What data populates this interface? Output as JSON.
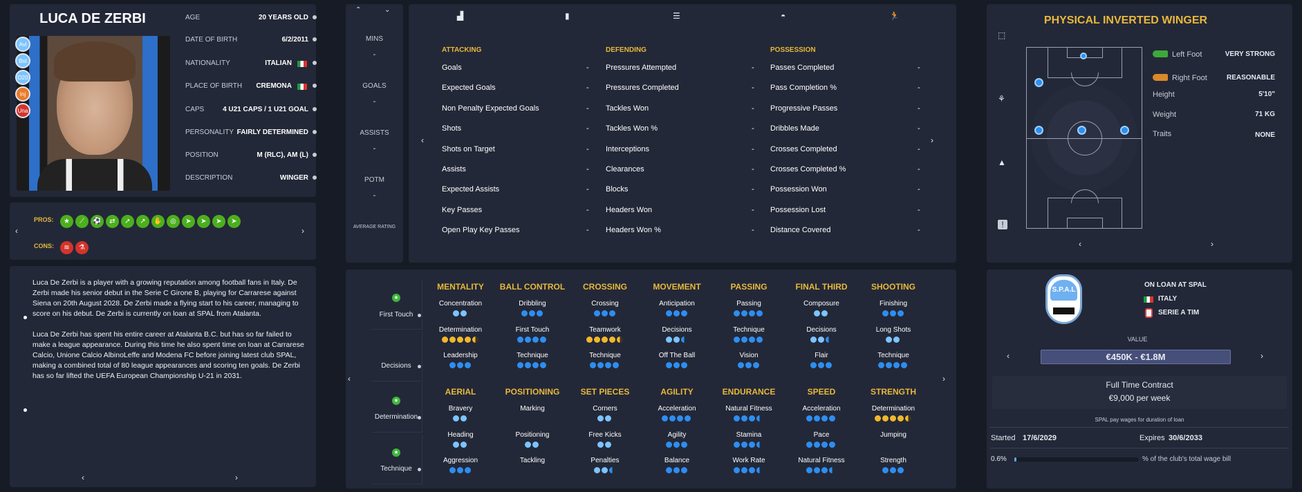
{
  "player": {
    "name": "LUCA DE ZERBI",
    "info": [
      {
        "key": "AGE",
        "value": "20 YEARS OLD"
      },
      {
        "key": "DATE OF BIRTH",
        "value": "6/2/2011"
      },
      {
        "key": "NATIONALITY",
        "value": "ITALIAN"
      },
      {
        "key": "PLACE OF BIRTH",
        "value": "CREMONA"
      },
      {
        "key": "CAPS",
        "value": "4 U21 CAPS / 1 U21 GOAL"
      },
      {
        "key": "PERSONALITY",
        "value": "FAIRLY DETERMINED"
      },
      {
        "key": "POSITION",
        "value": "M (RLC), AM (L)"
      },
      {
        "key": "DESCRIPTION",
        "value": "WINGER"
      }
    ],
    "tags": [
      {
        "label": "Avl",
        "color": "#7cc4ff"
      },
      {
        "label": "Bst",
        "color": "#7cc4ff"
      },
      {
        "label": "O20",
        "color": "#7cc4ff"
      },
      {
        "label": "Inj",
        "color": "#e97b2a"
      },
      {
        "label": "Una",
        "color": "#d3342b"
      }
    ]
  },
  "pros_label": "PROS:",
  "cons_label": "CONS:",
  "bio": {
    "p1": "Luca De Zerbi is a player with a growing reputation among football fans in Italy. De Zerbi made his senior debut in the Serie C Girone B, playing for Carrarese against Siena on 20th August 2028. De Zerbi made a flying start to his career, managing to score on his debut. De Zerbi is currently on loan at SPAL from Atalanta.",
    "p2": "Luca De Zerbi has spent his entire career at Atalanta B.C. but has so far failed to make a league appearance. During this time he also spent time on loan at Carrarese Calcio, Unione Calcio AlbinoLeffe and Modena FC before joining latest club SPAL, making a combined total of 80 league appearances and scoring ten goals. De Zerbi has so far lifted the UEFA European Championship U-21 in 2031."
  },
  "summary": [
    {
      "label": "MINS",
      "value": "-"
    },
    {
      "label": "GOALS",
      "value": "-"
    },
    {
      "label": "ASSISTS",
      "value": "-"
    },
    {
      "label": "POTM",
      "value": "-"
    },
    {
      "label": "AVERAGE RATING",
      "value": ""
    }
  ],
  "stats": {
    "attacking": {
      "title": "ATTACKING",
      "rows": [
        "Goals",
        "Expected Goals",
        "Non Penalty Expected Goals",
        "Shots",
        "Shots on Target",
        "Assists",
        "Expected Assists",
        "Key Passes",
        "Open Play Key Passes"
      ]
    },
    "defending": {
      "title": "DEFENDING",
      "rows": [
        "Pressures Attempted",
        "Pressures Completed",
        "Tackles Won",
        "Tackles Won %",
        "Interceptions",
        "Clearances",
        "Blocks",
        "Headers Won",
        "Headers Won %"
      ]
    },
    "possession": {
      "title": "POSSESSION",
      "rows": [
        "Passes Completed",
        "Pass Completion %",
        "Progressive Passes",
        "Dribbles Made",
        "Crosses Completed",
        "Crosses Completed %",
        "Possession Won",
        "Possession Lost",
        "Distance Covered"
      ]
    },
    "value": "-"
  },
  "traits_side": [
    {
      "label": "First Touch",
      "star": true
    },
    {
      "label": "Decisions",
      "star": false
    },
    {
      "label": "Determination",
      "star": true
    },
    {
      "label": "Technique",
      "star": true
    }
  ],
  "attributes_top": [
    {
      "head": "MENTALITY",
      "items": [
        {
          "n": "Concentration",
          "d": [
            "l",
            "l"
          ]
        },
        {
          "n": "Determination",
          "d": [
            "g",
            "g",
            "g",
            "g",
            "hg"
          ]
        },
        {
          "n": "Leadership",
          "d": [
            "b",
            "b",
            "b"
          ]
        }
      ]
    },
    {
      "head": "BALL CONTROL",
      "items": [
        {
          "n": "Dribbling",
          "d": [
            "b",
            "b",
            "b"
          ]
        },
        {
          "n": "First Touch",
          "d": [
            "b",
            "b",
            "b",
            "b"
          ]
        },
        {
          "n": "Technique",
          "d": [
            "b",
            "b",
            "b",
            "b"
          ]
        }
      ]
    },
    {
      "head": "CROSSING",
      "items": [
        {
          "n": "Crossing",
          "d": [
            "b",
            "b",
            "b"
          ]
        },
        {
          "n": "Teamwork",
          "d": [
            "g",
            "g",
            "g",
            "g",
            "hg"
          ]
        },
        {
          "n": "Technique",
          "d": [
            "b",
            "b",
            "b",
            "b"
          ]
        }
      ]
    },
    {
      "head": "MOVEMENT",
      "items": [
        {
          "n": "Anticipation",
          "d": [
            "b",
            "b",
            "b"
          ]
        },
        {
          "n": "Decisions",
          "d": [
            "l",
            "l",
            "h"
          ]
        },
        {
          "n": "Off The Ball",
          "d": [
            "b",
            "b",
            "b"
          ]
        }
      ]
    },
    {
      "head": "PASSING",
      "items": [
        {
          "n": "Passing",
          "d": [
            "b",
            "b",
            "b",
            "b"
          ]
        },
        {
          "n": "Technique",
          "d": [
            "b",
            "b",
            "b",
            "b"
          ]
        },
        {
          "n": "Vision",
          "d": [
            "b",
            "b",
            "b"
          ]
        }
      ]
    },
    {
      "head": "FINAL THIRD",
      "items": [
        {
          "n": "Composure",
          "d": [
            "l",
            "l"
          ]
        },
        {
          "n": "Decisions",
          "d": [
            "l",
            "l",
            "h"
          ]
        },
        {
          "n": "Flair",
          "d": [
            "b",
            "b",
            "b"
          ]
        }
      ]
    },
    {
      "head": "SHOOTING",
      "items": [
        {
          "n": "Finishing",
          "d": [
            "b",
            "b",
            "b"
          ]
        },
        {
          "n": "Long Shots",
          "d": [
            "l",
            "l"
          ]
        },
        {
          "n": "Technique",
          "d": [
            "b",
            "b",
            "b",
            "b"
          ]
        }
      ]
    }
  ],
  "attributes_bottom": [
    {
      "head": "AERIAL",
      "items": [
        {
          "n": "Bravery",
          "d": [
            "l",
            "l"
          ]
        },
        {
          "n": "Heading",
          "d": [
            "l",
            "l"
          ]
        },
        {
          "n": "Aggression",
          "d": [
            "b",
            "b",
            "b"
          ]
        }
      ]
    },
    {
      "head": "POSITIONING",
      "items": [
        {
          "n": "Marking",
          "d": []
        },
        {
          "n": "Positioning",
          "d": [
            "l",
            "l"
          ]
        },
        {
          "n": "Tackling",
          "d": []
        }
      ]
    },
    {
      "head": "SET PIECES",
      "items": [
        {
          "n": "Corners",
          "d": [
            "l",
            "l"
          ]
        },
        {
          "n": "Free Kicks",
          "d": [
            "l",
            "l"
          ]
        },
        {
          "n": "Penalties",
          "d": [
            "l",
            "l",
            "h"
          ]
        }
      ]
    },
    {
      "head": "AGILITY",
      "items": [
        {
          "n": "Acceleration",
          "d": [
            "b",
            "b",
            "b",
            "b"
          ]
        },
        {
          "n": "Agility",
          "d": [
            "b",
            "b",
            "b"
          ]
        },
        {
          "n": "Balance",
          "d": [
            "b",
            "b",
            "b"
          ]
        }
      ]
    },
    {
      "head": "ENDURANCE",
      "items": [
        {
          "n": "Natural Fitness",
          "d": [
            "b",
            "b",
            "b",
            "h"
          ]
        },
        {
          "n": "Stamina",
          "d": [
            "b",
            "b",
            "b",
            "h"
          ]
        },
        {
          "n": "Work Rate",
          "d": [
            "b",
            "b",
            "b",
            "h"
          ]
        }
      ]
    },
    {
      "head": "SPEED",
      "items": [
        {
          "n": "Acceleration",
          "d": [
            "b",
            "b",
            "b",
            "b"
          ]
        },
        {
          "n": "Pace",
          "d": [
            "b",
            "b",
            "b",
            "b"
          ]
        },
        {
          "n": "Natural Fitness",
          "d": [
            "b",
            "b",
            "b",
            "h"
          ]
        }
      ]
    },
    {
      "head": "STRENGTH",
      "items": [
        {
          "n": "Determination",
          "d": [
            "g",
            "g",
            "g",
            "g",
            "hg"
          ]
        },
        {
          "n": "Jumping",
          "d": []
        },
        {
          "n": "Strength",
          "d": [
            "b",
            "b",
            "b"
          ]
        }
      ]
    }
  ],
  "role": {
    "title": "PHYSICAL INVERTED WINGER",
    "left_foot_label": "Left Foot",
    "left_foot_value": "VERY STRONG",
    "right_foot_label": "Right Foot",
    "right_foot_value": "REASONABLE",
    "height_label": "Height",
    "height_value": "5'10\"",
    "weight_label": "Weight",
    "weight_value": "71 KG",
    "traits_label": "Traits",
    "traits_value": "NONE"
  },
  "contract": {
    "loan_title": "ON LOAN AT SPAL",
    "country": "ITALY",
    "league": "SERIE A TIM",
    "club_badge_text": "S.P.A.L",
    "value_label": "VALUE",
    "value": "€450K - €1.8M",
    "type": "Full Time Contract",
    "wage": "€9,000 per week",
    "wage_note": "SPAL pay wages for duration of loan",
    "started_label": "Started",
    "started": "17/6/2029",
    "expires_label": "Expires",
    "expires": "30/6/2033",
    "wage_pct": "0.6%",
    "wage_pct_fraction": 0.006,
    "wage_bill_label": "% of the club's total wage bill"
  }
}
